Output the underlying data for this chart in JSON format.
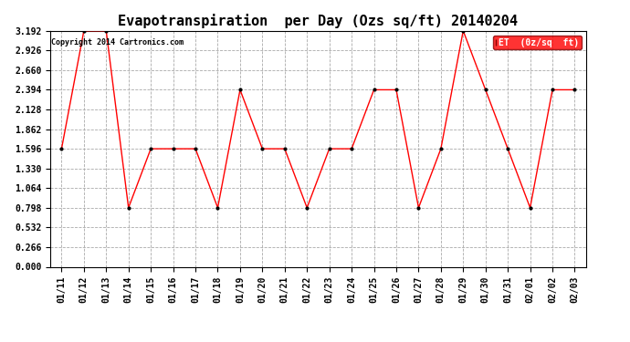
{
  "title": "Evapotranspiration  per Day (Ozs sq/ft) 20140204",
  "copyright": "Copyright 2014 Cartronics.com",
  "legend_label": "ET  (0z/sq  ft)",
  "dates": [
    "01/11",
    "01/12",
    "01/13",
    "01/14",
    "01/15",
    "01/16",
    "01/17",
    "01/18",
    "01/19",
    "01/20",
    "01/21",
    "01/22",
    "01/23",
    "01/24",
    "01/25",
    "01/26",
    "01/27",
    "01/28",
    "01/29",
    "01/30",
    "01/31",
    "02/01",
    "02/02",
    "02/03"
  ],
  "values": [
    1.596,
    3.192,
    3.192,
    0.798,
    1.596,
    1.596,
    1.596,
    0.798,
    2.394,
    1.596,
    1.596,
    0.798,
    1.596,
    1.596,
    2.394,
    2.394,
    0.798,
    1.596,
    3.192,
    2.394,
    1.596,
    0.798,
    2.394,
    2.394
  ],
  "ylim": [
    0.0,
    3.192
  ],
  "yticks": [
    0.0,
    0.266,
    0.532,
    0.798,
    1.064,
    1.33,
    1.596,
    1.862,
    2.128,
    2.394,
    2.66,
    2.926,
    3.192
  ],
  "line_color": "red",
  "marker_color": "black",
  "grid_color": "#aaaaaa",
  "background_color": "white",
  "title_fontsize": 11,
  "copyright_fontsize": 6,
  "tick_fontsize": 7,
  "legend_bg": "red",
  "legend_text_color": "white",
  "legend_fontsize": 7
}
